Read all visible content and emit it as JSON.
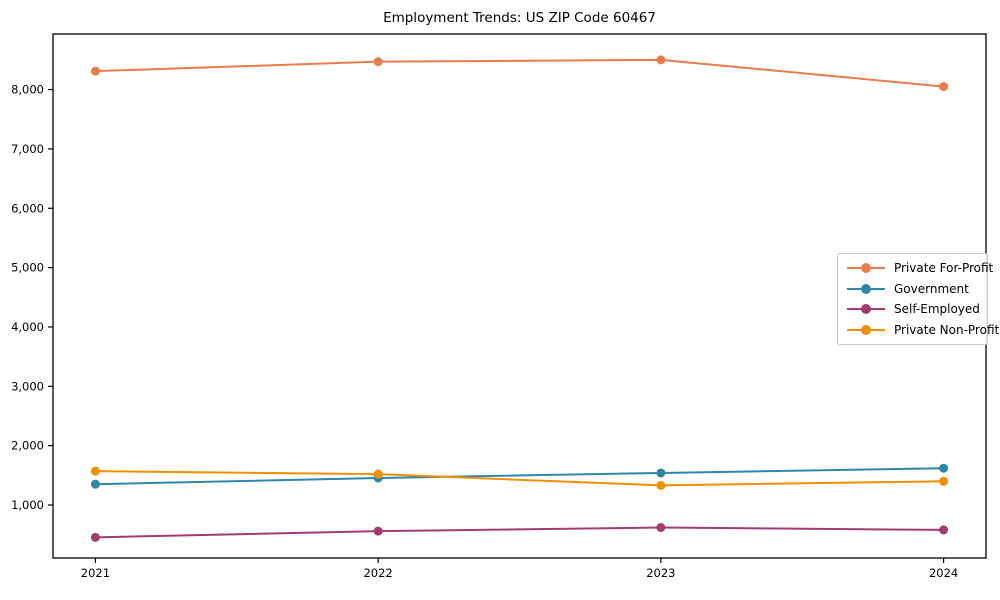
{
  "chart_data": {
    "type": "line",
    "title": "Employment Trends: US ZIP Code 60467",
    "x": [
      2021,
      2022,
      2023,
      2024
    ],
    "xtick_labels": [
      "2021",
      "2022",
      "2023",
      "2024"
    ],
    "ytick_values": [
      1000,
      2000,
      3000,
      4000,
      5000,
      6000,
      7000,
      8000
    ],
    "ytick_labels": [
      "1,000",
      "2,000",
      "3,000",
      "4,000",
      "5,000",
      "6,000",
      "7,000",
      "8,000"
    ],
    "series": [
      {
        "name": "Private For-Profit",
        "color": "#E87D4B",
        "values": [
          8310,
          8470,
          8500,
          8050
        ]
      },
      {
        "name": "Government",
        "color": "#2E86AB",
        "values": [
          1350,
          1455,
          1540,
          1620
        ]
      },
      {
        "name": "Self-Employed",
        "color": "#A23B72",
        "values": [
          455,
          560,
          620,
          580
        ]
      },
      {
        "name": "Private Non-Profit",
        "color": "#F18F01",
        "values": [
          1570,
          1520,
          1330,
          1400
        ]
      }
    ],
    "xlabel": "",
    "ylabel": "",
    "xlim": [
      2020.85,
      2024.15
    ],
    "ylim": [
      107,
      8936
    ],
    "grid": false,
    "legend_position": "center-right",
    "axis_color": "#000000",
    "background": "#ffffff"
  }
}
